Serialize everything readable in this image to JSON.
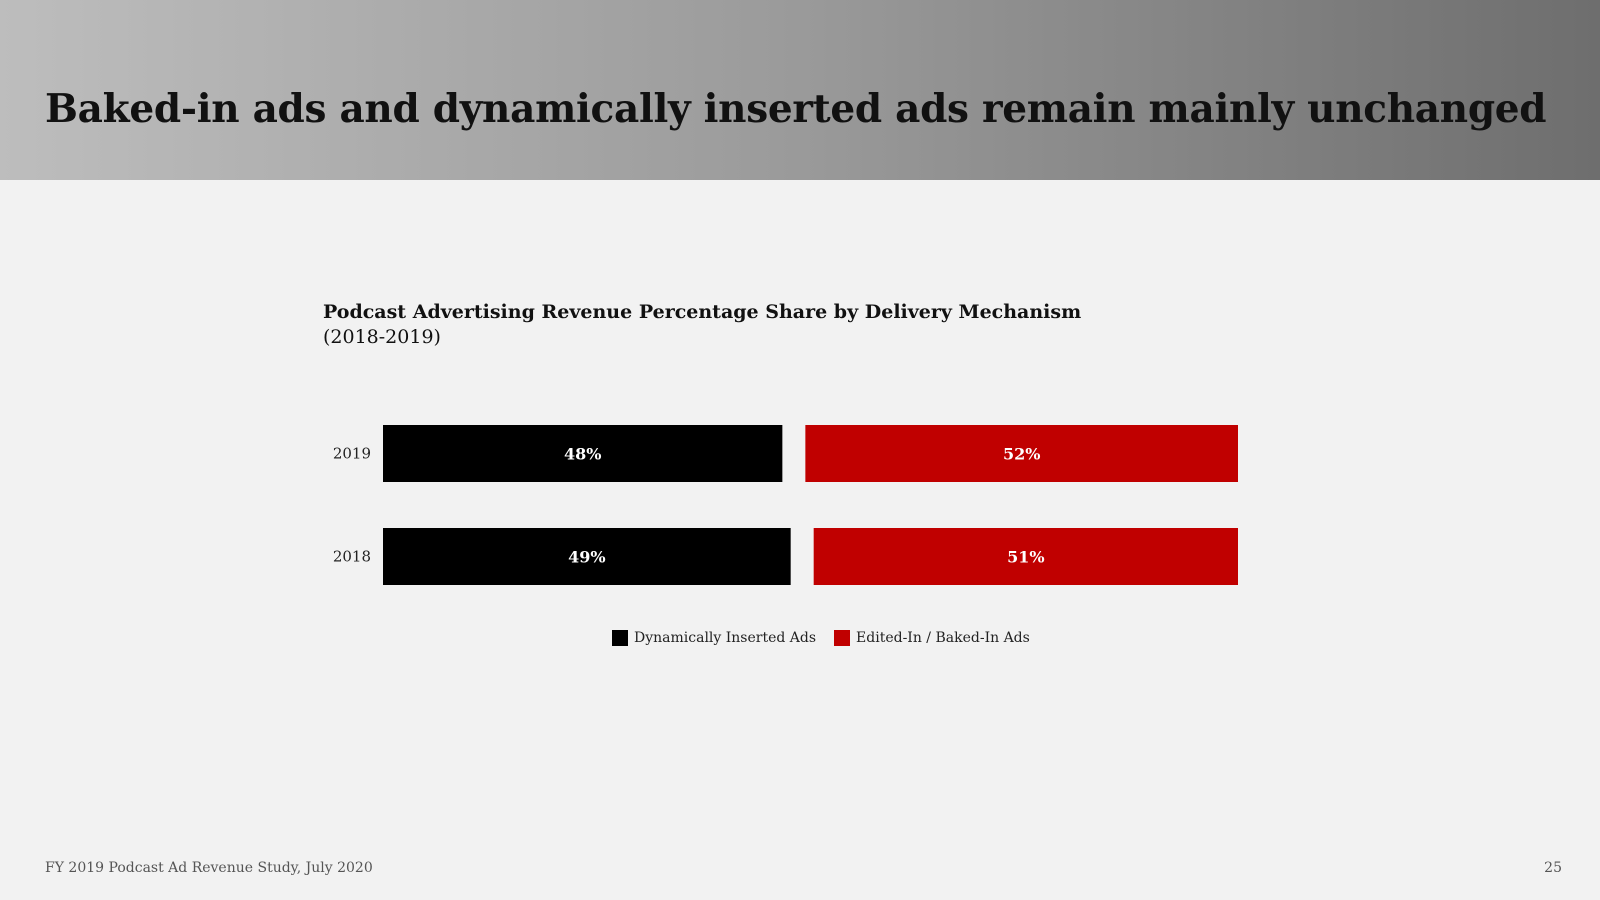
{
  "slide": {
    "title": "Baked-in ads and dynamically inserted ads remain mainly unchanged",
    "source": "FY 2019 Podcast Ad Revenue Study, July 2020",
    "page_number": "25"
  },
  "colors": {
    "dynamic": "#000000",
    "baked": "#c00000",
    "label_text": "#ffffff",
    "axis_text": "#222222"
  },
  "chart_data": {
    "type": "bar",
    "orientation": "horizontal",
    "stacked": true,
    "title": "Podcast Advertising Revenue Percentage Share by Delivery Mechanism",
    "subtitle": "(2018-2019)",
    "categories": [
      "2019",
      "2018"
    ],
    "series": [
      {
        "name": "Dynamically Inserted Ads",
        "values": [
          48,
          49
        ],
        "labels": [
          "48%",
          "49%"
        ]
      },
      {
        "name": "Edited-In / Baked-In Ads",
        "values": [
          52,
          51
        ],
        "labels": [
          "52%",
          "51%"
        ]
      }
    ],
    "xlim": [
      0,
      100
    ],
    "grid": false,
    "legend_position": "bottom"
  }
}
